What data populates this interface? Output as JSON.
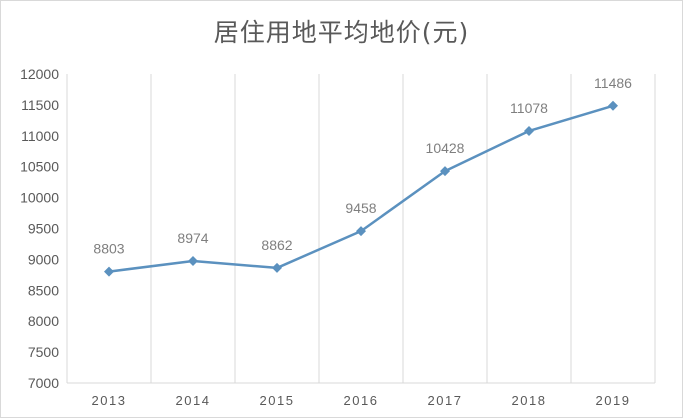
{
  "chart_data": {
    "type": "line",
    "title": "居住用地平均地价(元)",
    "categories": [
      "2013",
      "2014",
      "2015",
      "2016",
      "2017",
      "2018",
      "2019"
    ],
    "series": [
      {
        "values": [
          8803,
          8974,
          8862,
          9458,
          10428,
          11078,
          11486
        ],
        "color": "#5b91bf"
      }
    ],
    "data_labels": [
      "8803",
      "8974",
      "8862",
      "9458",
      "10428",
      "11078",
      "11486"
    ],
    "y_ticks": [
      "7000",
      "7500",
      "8000",
      "8500",
      "9000",
      "9500",
      "10000",
      "10500",
      "11000",
      "11500",
      "12000"
    ],
    "ylim": [
      7000,
      12000
    ],
    "xlabel": "",
    "ylabel": "",
    "grid": "vertical",
    "legend": "none",
    "marker": "diamond",
    "colors": {
      "gridline": "#d9d9d9",
      "axis": "#d9d9d9",
      "text": "#595959",
      "data_label": "#7f7f7f"
    }
  }
}
